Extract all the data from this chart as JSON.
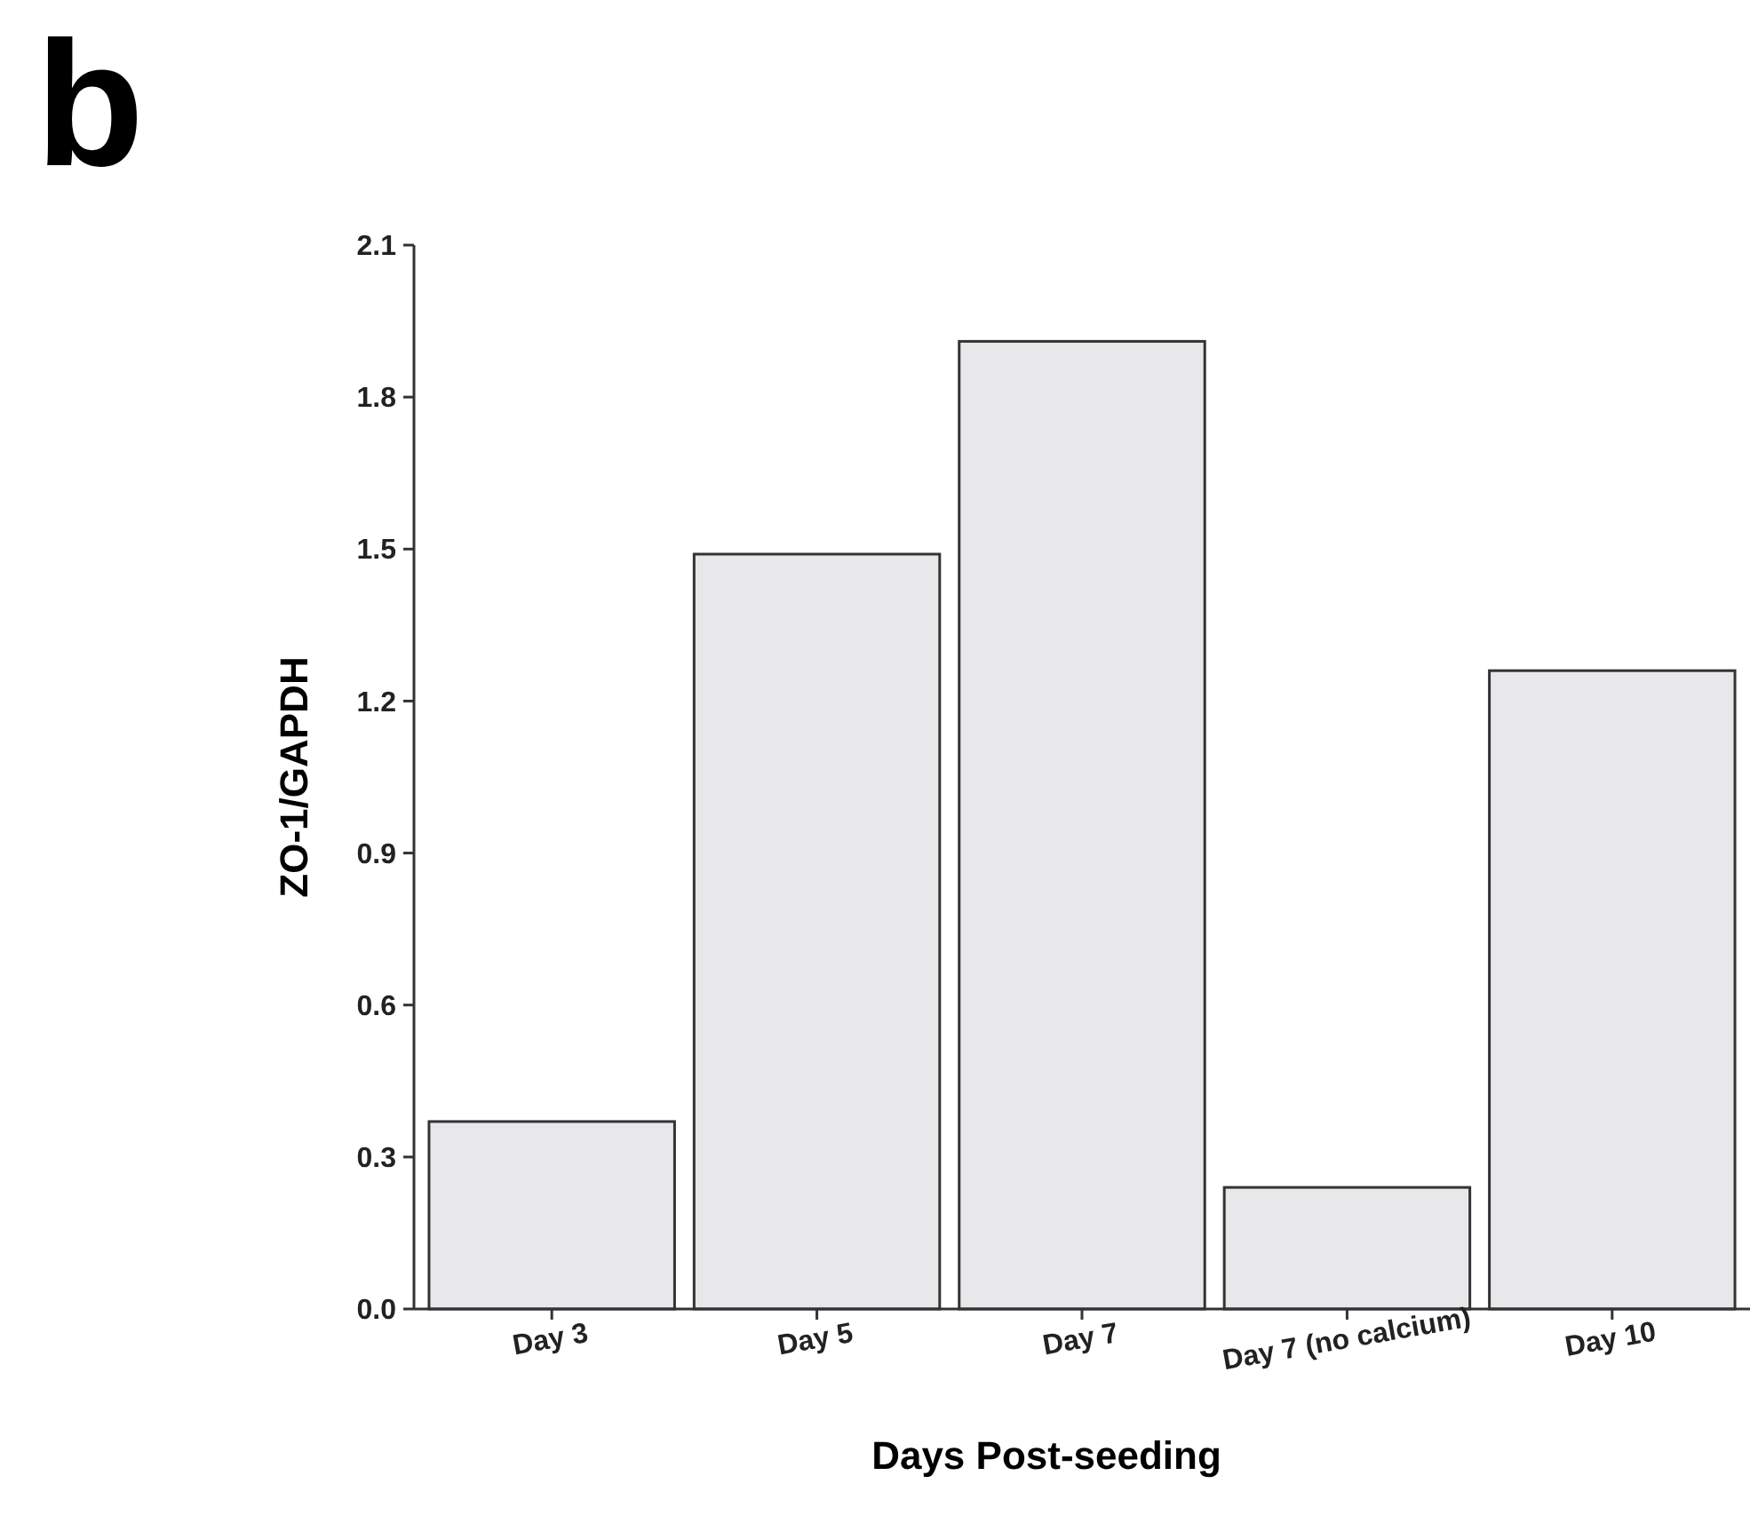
{
  "chart_data": {
    "type": "bar",
    "xlabel": "Days Post-seeding",
    "ylabel": "ZO-1/GAPDH",
    "annotations": [
      "b"
    ],
    "categories": [
      "Day 3",
      "Day 5",
      "Day 7",
      "Day 7 (no calcium)",
      "Day 10"
    ],
    "values": [
      0.37,
      1.49,
      1.91,
      0.24,
      1.26
    ],
    "color": "#e8e8ea",
    "ylim": [
      0,
      2.1
    ],
    "yticks": [
      {
        "value": 0,
        "label": "0.0"
      },
      0.3,
      0.6,
      0.9,
      1.2,
      1.5,
      1.8,
      2.1
    ],
    "grid": false
  }
}
